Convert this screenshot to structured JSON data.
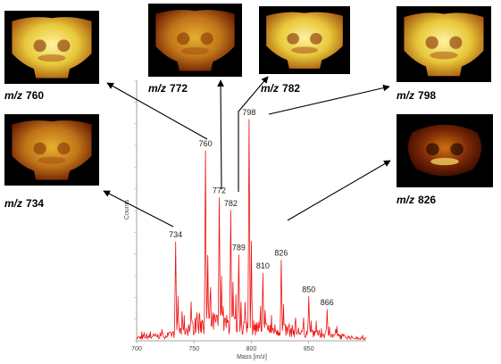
{
  "chart_data": {
    "type": "line",
    "title": "",
    "xlabel": "Mass [m/z]",
    "ylabel": "Counts",
    "xlim": [
      700,
      900
    ],
    "x_ticks": [
      "700",
      "750",
      "800",
      "850"
    ],
    "line_color": "#ee1111",
    "peaks": [
      {
        "mz": 734,
        "label": "734",
        "height": 0.38
      },
      {
        "mz": 760,
        "label": "760",
        "height": 0.73
      },
      {
        "mz": 772,
        "label": "772",
        "height": 0.55
      },
      {
        "mz": 782,
        "label": "782",
        "height": 0.5
      },
      {
        "mz": 789,
        "label": "789",
        "height": 0.33
      },
      {
        "mz": 798,
        "label": "798",
        "height": 0.85
      },
      {
        "mz": 810,
        "label": "810",
        "height": 0.26
      },
      {
        "mz": 826,
        "label": "826",
        "height": 0.31
      },
      {
        "mz": 850,
        "label": "850",
        "height": 0.17
      },
      {
        "mz": 866,
        "label": "866",
        "height": 0.12
      }
    ]
  },
  "ion_images": [
    {
      "mz": 760,
      "prefix": "m/z",
      "value": "760"
    },
    {
      "mz": 772,
      "prefix": "m/z",
      "value": "772"
    },
    {
      "mz": 782,
      "prefix": "m/z",
      "value": "782"
    },
    {
      "mz": 798,
      "prefix": "m/z",
      "value": "798"
    },
    {
      "mz": 734,
      "prefix": "m/z",
      "value": "734"
    },
    {
      "mz": 826,
      "prefix": "m/z",
      "value": "826"
    }
  ],
  "colors": {
    "image_bg": "#000000",
    "tissue_bright": "#f4e060",
    "tissue_mid": "#d0a020",
    "tissue_dark": "#7a2a05"
  }
}
